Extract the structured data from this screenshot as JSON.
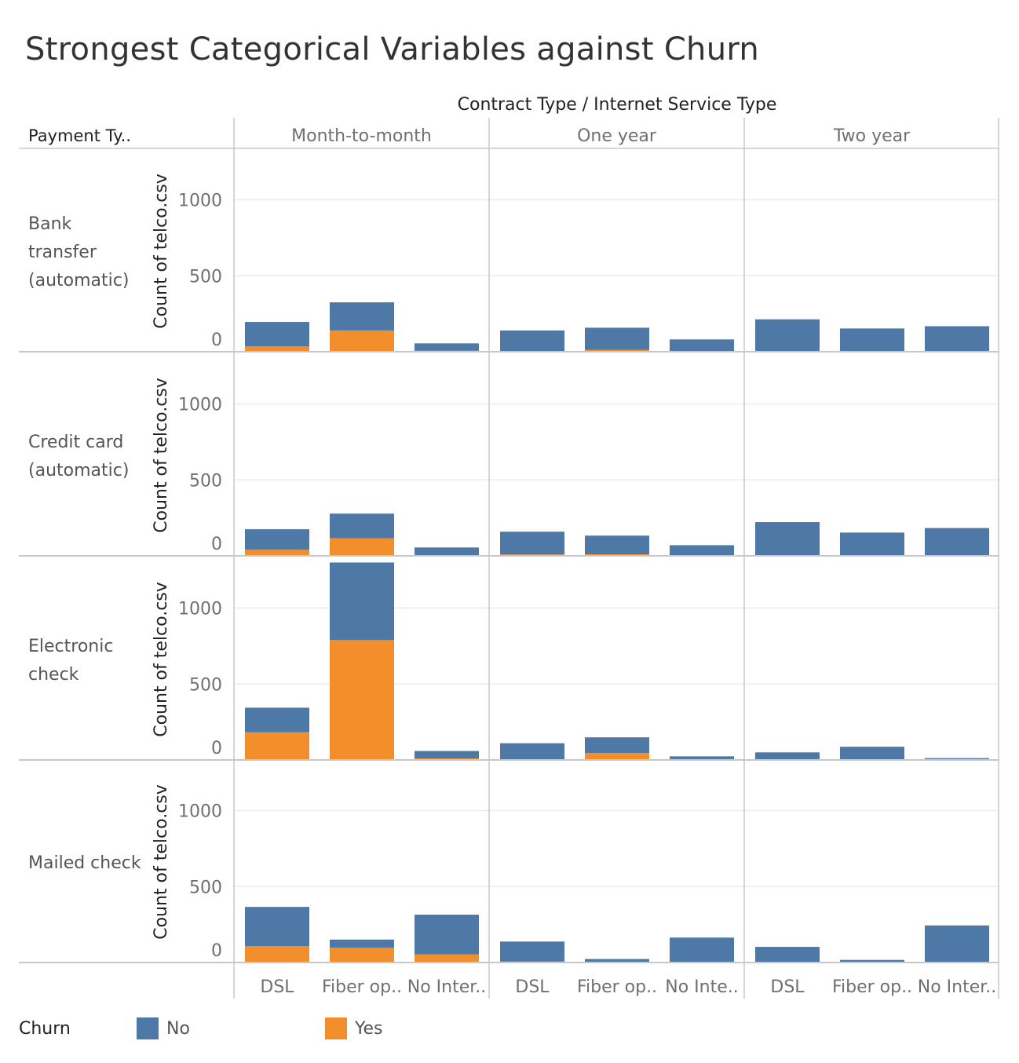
{
  "title": "Strongest Categorical Variables against Churn",
  "colors": {
    "no": "#4e79a7",
    "yes": "#f28e2b",
    "grid": "#ebebeb",
    "divider": "#c8c8c8",
    "axis_text": "#707070",
    "label_text": "#555555"
  },
  "chart_data": {
    "type": "bar",
    "stacked": true,
    "column_header": "Contract Type  /  Internet Service Type",
    "row_header": "Payment Ty..",
    "ylabel": "Count of telco.csv",
    "ylim": [
      0,
      1300
    ],
    "y_ticks": [
      0,
      500,
      1000
    ],
    "contract_types": [
      "Month-to-month",
      "One year",
      "Two year"
    ],
    "internet_types": [
      "DSL",
      "Fiber optic",
      "No Internet"
    ],
    "x_tick_labels": [
      [
        "DSL",
        "Fiber op..",
        "No Inter.."
      ],
      [
        "DSL",
        "Fiber op..",
        "No Inte.."
      ],
      [
        "DSL",
        "Fiber op..",
        "No Inter.."
      ]
    ],
    "payment_types": [
      "Bank transfer (automatic)",
      "Credit card (automatic)",
      "Electronic check",
      "Mailed check"
    ],
    "row_labels": [
      [
        "Bank",
        "transfer",
        "(automatic)"
      ],
      [
        "Credit card",
        "(automatic)"
      ],
      [
        "Electronic",
        "check"
      ],
      [
        "Mailed check"
      ]
    ],
    "series": [
      {
        "name": "No",
        "values": [
          [
            [
              161,
              185,
              49
            ],
            [
              137,
              146,
              79
            ],
            [
              213,
              148,
              168
            ]
          ],
          [
            [
              135,
              162,
              50
            ],
            [
              150,
              123,
              68
            ],
            [
              222,
              148,
              183
            ]
          ],
          [
            [
              162,
              511,
              49
            ],
            [
              105,
              103,
              24
            ],
            [
              50,
              82,
              12
            ]
          ],
          [
            [
              259,
              53,
              262
            ],
            [
              132,
              19,
              163
            ],
            [
              103,
              17,
              244
            ]
          ]
        ]
      },
      {
        "name": "Yes",
        "values": [
          [
            [
              35,
              140,
              6
            ],
            [
              3,
              12,
              2
            ],
            [
              0,
              5,
              0
            ]
          ],
          [
            [
              40,
              116,
              5
            ],
            [
              9,
              10,
              2
            ],
            [
              0,
              5,
              0
            ]
          ],
          [
            [
              182,
              789,
              10
            ],
            [
              5,
              46,
              0
            ],
            [
              0,
              5,
              0
            ]
          ],
          [
            [
              107,
              98,
              53
            ],
            [
              6,
              4,
              1
            ],
            [
              0,
              0,
              0
            ]
          ]
        ]
      }
    ]
  },
  "legend": {
    "title": "Churn",
    "items": [
      {
        "label": "No",
        "color": "#4e79a7"
      },
      {
        "label": "Yes",
        "color": "#f28e2b"
      }
    ]
  }
}
